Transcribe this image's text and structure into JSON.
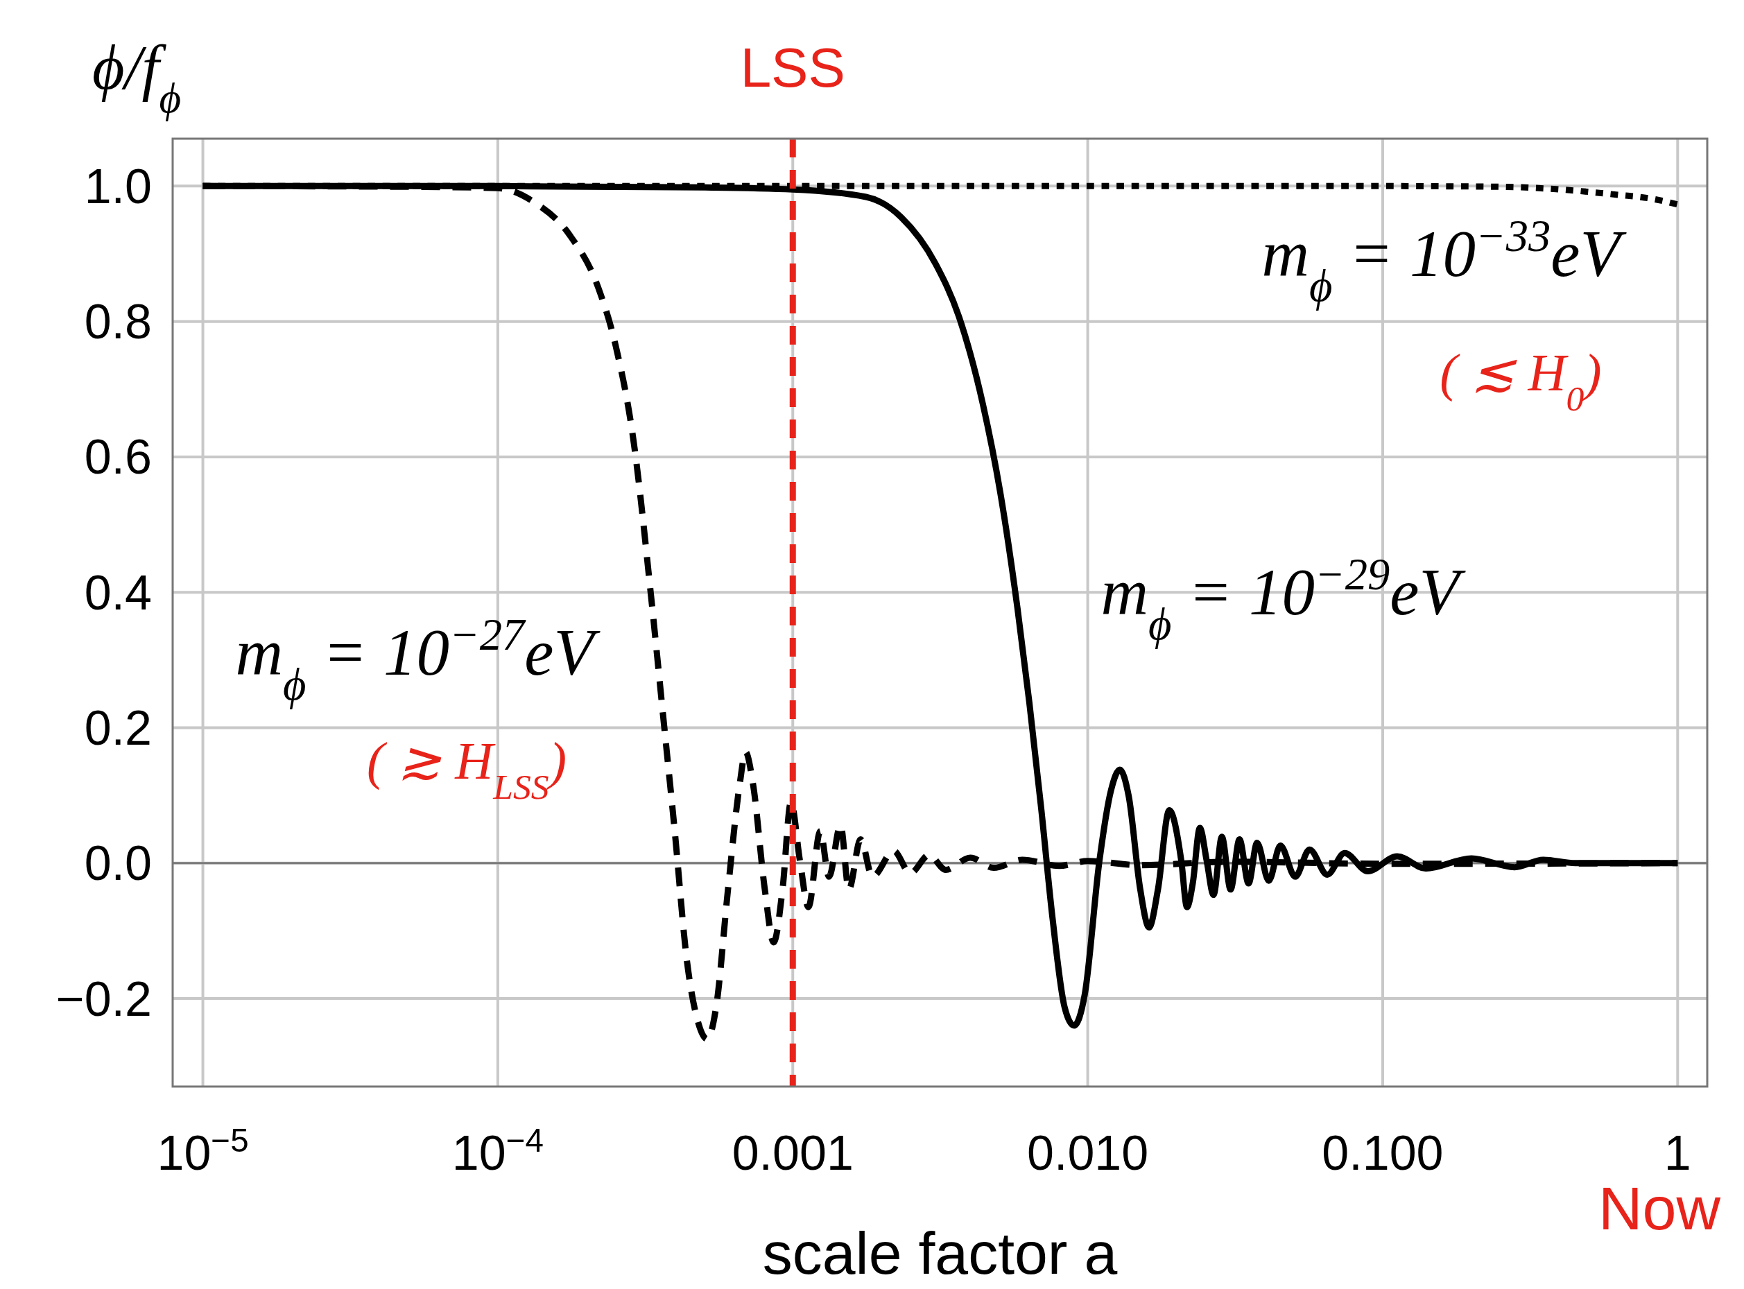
{
  "chart_data": {
    "type": "line",
    "xlabel": "scale factor a",
    "ylabel": "ϕ/f$_{ϕ}$",
    "log": "x",
    "xlim": [
      7.9e-06,
      1.26
    ],
    "ylim": [
      -0.33,
      1.07
    ],
    "xticks": [
      {
        "value": 1e-05,
        "label": "10$^{−5}$"
      },
      {
        "value": 0.0001,
        "label": "10$^{−4}$"
      },
      0.001,
      {
        "value": 0.01,
        "label": "0.010"
      },
      {
        "value": 0.1,
        "label": "0.100"
      },
      1
    ],
    "yticks": [
      {
        "value": -0.2,
        "label": "−0.2"
      },
      {
        "value": 0,
        "label": "0.0"
      },
      0.2,
      0.4,
      0.6,
      0.8,
      {
        "value": 1,
        "label": "1.0"
      }
    ],
    "grid": true,
    "series": [
      {
        "color": "#000000",
        "line_style": "dotted",
        "x": [
          1e-05,
          0.1,
          0.25,
          0.4,
          0.63,
          0.8,
          1
        ],
        "values": [
          1,
          1,
          0.999,
          0.995,
          0.987,
          0.982,
          0.973
        ]
      },
      {
        "color": "#000000",
        "line_style": "dashed",
        "x": [
          1e-05,
          5e-05,
          0.0001,
          0.000133,
          0.000175,
          0.000219,
          0.000251,
          0.000288,
          0.000331,
          0.000363,
          0.000398,
          0.000437,
          0.000479,
          0.000513,
          0.00055,
          0.000603,
          0.000661,
          0.000692,
          0.000733,
          0.000804,
          0.000861,
          0.000923,
          0.000986,
          0.001057,
          0.00113,
          0.001239,
          0.001327,
          0.001452,
          0.001549,
          0.001698,
          0.001862,
          0.0022,
          0.0025,
          0.0029,
          0.0033,
          0.004,
          0.0048,
          0.006,
          0.008,
          0.01,
          0.015,
          0.03,
          0.1,
          1
        ],
        "values": [
          1,
          0.999,
          0.997,
          0.976,
          0.928,
          0.85,
          0.764,
          0.626,
          0.393,
          0.22,
          0.047,
          -0.142,
          -0.237,
          -0.26,
          -0.212,
          -0.039,
          0.117,
          0.164,
          0.117,
          -0.039,
          -0.117,
          -0.039,
          0.09,
          0.004,
          -0.065,
          0.047,
          -0.02,
          0.056,
          -0.039,
          0.035,
          -0.02,
          0.018,
          -0.015,
          0.012,
          -0.01,
          0.008,
          -0.007,
          0.005,
          -0.004,
          0.003,
          -0.003,
          0.002,
          -0.001,
          0
        ]
      },
      {
        "color": "#000000",
        "line_style": "solid",
        "x": [
          1e-05,
          0.0001,
          0.0005,
          0.001,
          0.00177,
          0.00233,
          0.00305,
          0.00366,
          0.00441,
          0.00505,
          0.00578,
          0.00634,
          0.00695,
          0.0076,
          0.00834,
          0.00899,
          0.00977,
          0.01096,
          0.012,
          0.01285,
          0.01377,
          0.01507,
          0.01614,
          0.0173,
          0.0189,
          0.02075,
          0.0217,
          0.0227,
          0.024,
          0.0253,
          0.0267,
          0.0285,
          0.0305,
          0.0327,
          0.0351,
          0.0375,
          0.0411,
          0.045,
          0.0505,
          0.0565,
          0.0649,
          0.0743,
          0.089,
          0.112,
          0.14,
          0.2,
          0.28,
          0.35,
          0.45,
          1
        ],
        "values": [
          1,
          1,
          0.998,
          0.995,
          0.984,
          0.954,
          0.885,
          0.807,
          0.678,
          0.548,
          0.376,
          0.237,
          0.082,
          -0.082,
          -0.212,
          -0.24,
          -0.194,
          0.004,
          0.108,
          0.138,
          0.099,
          -0.039,
          -0.095,
          -0.039,
          0.078,
          0.004,
          -0.065,
          -0.03,
          0.052,
          0.004,
          -0.047,
          0.039,
          -0.039,
          0.035,
          -0.03,
          0.03,
          -0.026,
          0.026,
          -0.02,
          0.02,
          -0.017,
          0.015,
          -0.012,
          0.01,
          -0.008,
          0.007,
          -0.006,
          0.005,
          0,
          0
        ]
      }
    ],
    "ref_lines": [
      {
        "axis": "x",
        "value": 0.001,
        "label": "LSS",
        "color": "#e8231a",
        "line_style": "dashed"
      },
      {
        "axis": "y",
        "value": 0,
        "color": "#7a7a7a",
        "line_style": "solid"
      }
    ],
    "annotations": [
      "m$_{ϕ}$ = 10$^{−27}$eV",
      "( ≳ H$_{LSS}$)",
      "m$_{ϕ}$ = 10$^{−29}$eV",
      "m$_{ϕ}$ = 10$^{−33}$eV",
      "( ≲ H$_{0}$)",
      "Now"
    ]
  }
}
